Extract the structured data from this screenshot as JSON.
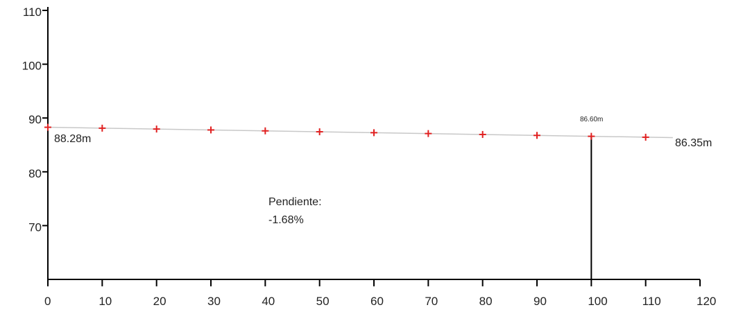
{
  "chart_data": {
    "type": "line",
    "title": "",
    "xlabel": "",
    "ylabel": "",
    "xlim": [
      0,
      120
    ],
    "ylim": [
      60,
      110
    ],
    "grid": false,
    "x_ticks": [
      0,
      10,
      20,
      30,
      40,
      50,
      60,
      70,
      80,
      90,
      100,
      110,
      120
    ],
    "y_ticks": [
      70,
      80,
      90,
      100,
      110
    ],
    "x_tick_labels": [
      "0",
      "10",
      "20",
      "30",
      "40",
      "50",
      "60",
      "70",
      "80",
      "90",
      "100",
      "110",
      "120"
    ],
    "y_tick_labels": [
      "70",
      "80",
      "90",
      "100",
      "110"
    ],
    "colors": {
      "profile": "#c8c8c8",
      "markers": "#e02020",
      "axes": "#000000",
      "vline": "#000000"
    },
    "profile_line": {
      "x": [
        0,
        115
      ],
      "y": [
        88.28,
        86.35
      ]
    },
    "points": {
      "x": [
        0,
        10,
        20,
        30,
        40,
        50,
        60,
        70,
        80,
        90,
        100,
        110
      ],
      "y": [
        88.28,
        88.11,
        87.95,
        87.78,
        87.61,
        87.44,
        87.27,
        87.11,
        86.94,
        86.77,
        86.6,
        86.43
      ]
    },
    "vertical_marker": {
      "x": 100,
      "y": 86.6
    },
    "annotations": {
      "start_label": "88.28m",
      "end_label": "86.35m",
      "marker_label": "86.60m",
      "slope_title": "Pendiente:",
      "slope_value": "-1.68%"
    }
  }
}
